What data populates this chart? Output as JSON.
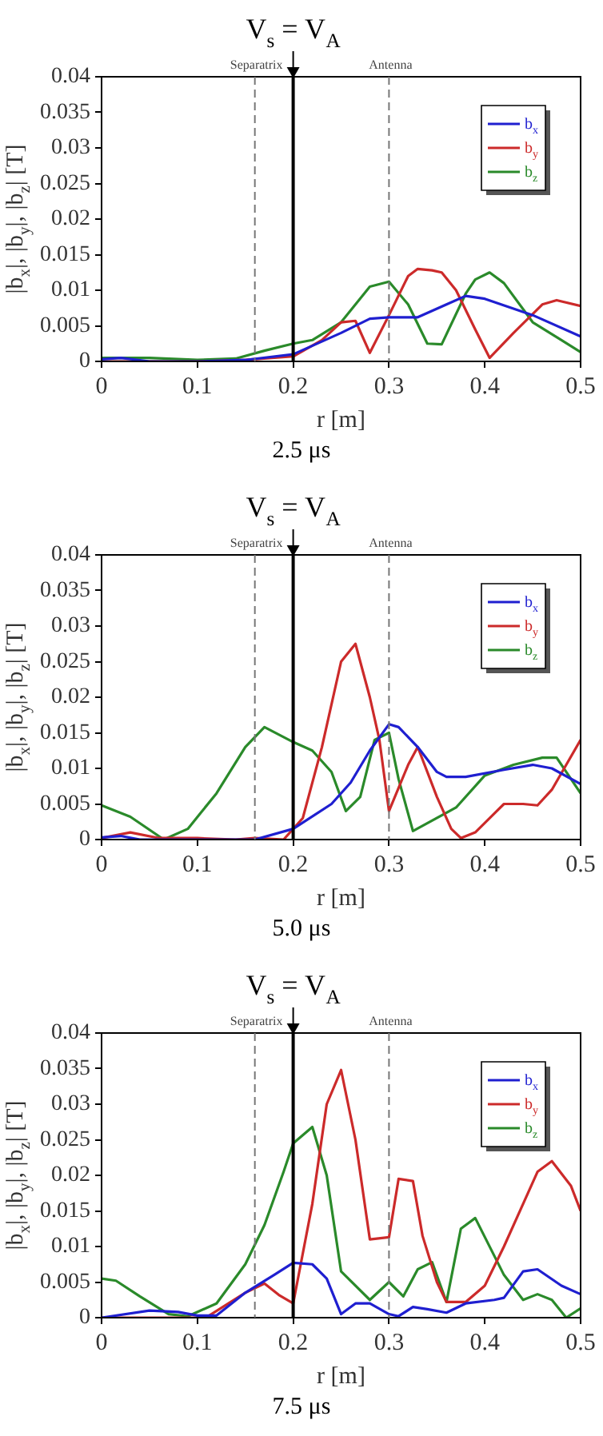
{
  "chart_data": [
    {
      "type": "line",
      "title": "2.5 μs",
      "xlabel": "r [m]",
      "ylabel": "|b$_{x}$|, |b$_{y}$|, |b$_{z}$| [T]",
      "xlim": [
        0,
        0.5
      ],
      "xticks": [
        0,
        0.1,
        0.2,
        0.3,
        0.4,
        0.5
      ],
      "ylim": [
        0,
        0.04
      ],
      "yticks": [
        0,
        0.005,
        0.01,
        0.015,
        0.02,
        0.025,
        0.03,
        0.035,
        0.04
      ],
      "grid": false,
      "legend": "top right",
      "marker": "none",
      "line_style": "solid",
      "ref_lines": [
        {
          "axis": "x",
          "value": 0.16,
          "label": "Separatrix",
          "color": "#777777",
          "line_style": "dashed"
        },
        {
          "axis": "x",
          "value": 0.3,
          "label": "Antenna",
          "color": "#777777",
          "line_style": "dashed"
        },
        {
          "axis": "x",
          "value": 0.2,
          "label": "V$_{s}$ = V$_{A}$",
          "color": "#000000",
          "line_style": "solid"
        }
      ],
      "series": [
        {
          "name": "b$_{x}$",
          "color": "#1f1fd0",
          "x": [
            0,
            0.02,
            0.05,
            0.1,
            0.15,
            0.2,
            0.25,
            0.28,
            0.3,
            0.33,
            0.36,
            0.38,
            0.4,
            0.45,
            0.5
          ],
          "values": [
            0.0003,
            0.0005,
            0,
            0,
            0.0002,
            0.001,
            0.004,
            0.006,
            0.0062,
            0.0062,
            0.008,
            0.0092,
            0.0088,
            0.0065,
            0.0035
          ]
        },
        {
          "name": "b$_{y}$",
          "color": "#cc2a2a",
          "x": [
            0,
            0.1,
            0.15,
            0.2,
            0.23,
            0.25,
            0.265,
            0.28,
            0.3,
            0.32,
            0.33,
            0.345,
            0.355,
            0.37,
            0.39,
            0.405,
            0.43,
            0.46,
            0.475,
            0.5
          ],
          "values": [
            0,
            0,
            0.0002,
            0.0007,
            0.003,
            0.0055,
            0.0057,
            0.0012,
            0.0065,
            0.012,
            0.013,
            0.0128,
            0.0125,
            0.01,
            0.0045,
            0.0005,
            0.004,
            0.008,
            0.0086,
            0.0078
          ]
        },
        {
          "name": "b$_{z}$",
          "color": "#2a8a2a",
          "x": [
            0,
            0.05,
            0.1,
            0.14,
            0.17,
            0.2,
            0.22,
            0.25,
            0.28,
            0.3,
            0.32,
            0.34,
            0.355,
            0.38,
            0.39,
            0.405,
            0.42,
            0.45,
            0.48,
            0.5
          ],
          "values": [
            0.0005,
            0.0005,
            0.0002,
            0.0004,
            0.0015,
            0.0025,
            0.003,
            0.0055,
            0.0105,
            0.0112,
            0.008,
            0.0025,
            0.0024,
            0.0095,
            0.0115,
            0.0125,
            0.011,
            0.0055,
            0.003,
            0.0013
          ]
        }
      ]
    },
    {
      "type": "line",
      "title": "5.0 μs",
      "xlabel": "r [m]",
      "ylabel": "|b$_{x}$|, |b$_{y}$|, |b$_{z}$| [T]",
      "xlim": [
        0,
        0.5
      ],
      "xticks": [
        0,
        0.1,
        0.2,
        0.3,
        0.4,
        0.5
      ],
      "ylim": [
        0,
        0.04
      ],
      "yticks": [
        0,
        0.005,
        0.01,
        0.015,
        0.02,
        0.025,
        0.03,
        0.035,
        0.04
      ],
      "grid": false,
      "legend": "top right",
      "marker": "none",
      "line_style": "solid",
      "ref_lines": [
        {
          "axis": "x",
          "value": 0.16,
          "label": "Separatrix",
          "color": "#777777",
          "line_style": "dashed"
        },
        {
          "axis": "x",
          "value": 0.3,
          "label": "Antenna",
          "color": "#777777",
          "line_style": "dashed"
        },
        {
          "axis": "x",
          "value": 0.2,
          "label": "V$_{s}$ = V$_{A}$",
          "color": "#000000",
          "line_style": "solid"
        }
      ],
      "series": [
        {
          "name": "b$_{x}$",
          "color": "#1f1fd0",
          "x": [
            0,
            0.02,
            0.04,
            0.16,
            0.2,
            0.24,
            0.26,
            0.28,
            0.3,
            0.31,
            0.33,
            0.35,
            0.36,
            0.38,
            0.42,
            0.45,
            0.47,
            0.5
          ],
          "values": [
            0.0003,
            0.0005,
            0,
            0,
            0.0015,
            0.005,
            0.008,
            0.0125,
            0.0162,
            0.0158,
            0.013,
            0.0095,
            0.0088,
            0.0088,
            0.0098,
            0.0105,
            0.01,
            0.0078
          ]
        },
        {
          "name": "b$_{y}$",
          "color": "#cc2a2a",
          "x": [
            0,
            0.03,
            0.06,
            0.1,
            0.14,
            0.16,
            0.19,
            0.21,
            0.23,
            0.25,
            0.265,
            0.28,
            0.29,
            0.3,
            0.32,
            0.33,
            0.35,
            0.365,
            0.375,
            0.39,
            0.42,
            0.44,
            0.455,
            0.47,
            0.5
          ],
          "values": [
            0.0002,
            0.001,
            0.0002,
            0.0002,
            0,
            0.0002,
            0,
            0.003,
            0.013,
            0.025,
            0.0275,
            0.02,
            0.014,
            0.004,
            0.0105,
            0.013,
            0.006,
            0.0015,
            0.0002,
            0.001,
            0.005,
            0.005,
            0.0048,
            0.007,
            0.014
          ]
        },
        {
          "name": "b$_{z}$",
          "color": "#2a8a2a",
          "x": [
            0,
            0.03,
            0.065,
            0.09,
            0.12,
            0.15,
            0.17,
            0.2,
            0.22,
            0.24,
            0.255,
            0.27,
            0.285,
            0.3,
            0.31,
            0.325,
            0.37,
            0.4,
            0.43,
            0.46,
            0.475,
            0.5
          ],
          "values": [
            0.0048,
            0.0032,
            0,
            0.0015,
            0.0065,
            0.013,
            0.0158,
            0.0137,
            0.0125,
            0.0095,
            0.004,
            0.006,
            0.014,
            0.015,
            0.0085,
            0.0012,
            0.0045,
            0.009,
            0.0105,
            0.0115,
            0.0115,
            0.0065
          ]
        }
      ]
    },
    {
      "type": "line",
      "title": "7.5 μs",
      "xlabel": "r [m]",
      "ylabel": "|b$_{x}$|, |b$_{y}$|, |b$_{z}$| [T]",
      "xlim": [
        0,
        0.5
      ],
      "xticks": [
        0,
        0.1,
        0.2,
        0.3,
        0.4,
        0.5
      ],
      "ylim": [
        0,
        0.04
      ],
      "yticks": [
        0,
        0.005,
        0.01,
        0.015,
        0.02,
        0.025,
        0.03,
        0.035,
        0.04
      ],
      "grid": false,
      "legend": "top right",
      "marker": "none",
      "line_style": "solid",
      "ref_lines": [
        {
          "axis": "x",
          "value": 0.16,
          "label": "Separatrix",
          "color": "#777777",
          "line_style": "dashed"
        },
        {
          "axis": "x",
          "value": 0.3,
          "label": "Antenna",
          "color": "#777777",
          "line_style": "dashed"
        },
        {
          "axis": "x",
          "value": 0.2,
          "label": "V$_{s}$ = V$_{A}$",
          "color": "#000000",
          "line_style": "solid"
        }
      ],
      "series": [
        {
          "name": "b$_{x}$",
          "color": "#1f1fd0",
          "x": [
            0,
            0.05,
            0.08,
            0.1,
            0.12,
            0.15,
            0.18,
            0.2,
            0.22,
            0.235,
            0.25,
            0.265,
            0.28,
            0.3,
            0.31,
            0.325,
            0.34,
            0.36,
            0.38,
            0.41,
            0.42,
            0.44,
            0.455,
            0.48,
            0.5
          ],
          "values": [
            0,
            0.001,
            0.0008,
            0.0003,
            0.0003,
            0.0035,
            0.006,
            0.0077,
            0.0075,
            0.0055,
            0.0005,
            0.002,
            0.002,
            0.0005,
            0.0002,
            0.0015,
            0.0012,
            0.0007,
            0.002,
            0.0025,
            0.0028,
            0.0065,
            0.0068,
            0.0045,
            0.0033
          ]
        },
        {
          "name": "b$_{y}$",
          "color": "#cc2a2a",
          "x": [
            0,
            0.05,
            0.1,
            0.11,
            0.15,
            0.17,
            0.185,
            0.2,
            0.22,
            0.235,
            0.25,
            0.265,
            0.28,
            0.3,
            0.31,
            0.325,
            0.335,
            0.35,
            0.36,
            0.38,
            0.4,
            0.42,
            0.44,
            0.455,
            0.47,
            0.49,
            0.5
          ],
          "values": [
            0,
            0,
            0,
            0.0001,
            0.0035,
            0.0048,
            0.0032,
            0.002,
            0.016,
            0.03,
            0.0348,
            0.025,
            0.011,
            0.0113,
            0.0195,
            0.0192,
            0.0115,
            0.005,
            0.0022,
            0.0022,
            0.0045,
            0.01,
            0.016,
            0.0205,
            0.022,
            0.0185,
            0.015
          ]
        },
        {
          "name": "b$_{z}$",
          "color": "#2a8a2a",
          "x": [
            0,
            0.015,
            0.04,
            0.07,
            0.09,
            0.12,
            0.15,
            0.17,
            0.19,
            0.2,
            0.22,
            0.235,
            0.25,
            0.28,
            0.3,
            0.315,
            0.33,
            0.345,
            0.36,
            0.375,
            0.39,
            0.42,
            0.44,
            0.455,
            0.47,
            0.485,
            0.5
          ],
          "values": [
            0.0055,
            0.0052,
            0.003,
            0.0005,
            0.0002,
            0.002,
            0.0075,
            0.013,
            0.0205,
            0.0245,
            0.0268,
            0.02,
            0.0065,
            0.0025,
            0.005,
            0.003,
            0.0068,
            0.0078,
            0.0022,
            0.0125,
            0.014,
            0.006,
            0.0025,
            0.0033,
            0.0025,
            0,
            0.0013
          ]
        }
      ]
    }
  ]
}
